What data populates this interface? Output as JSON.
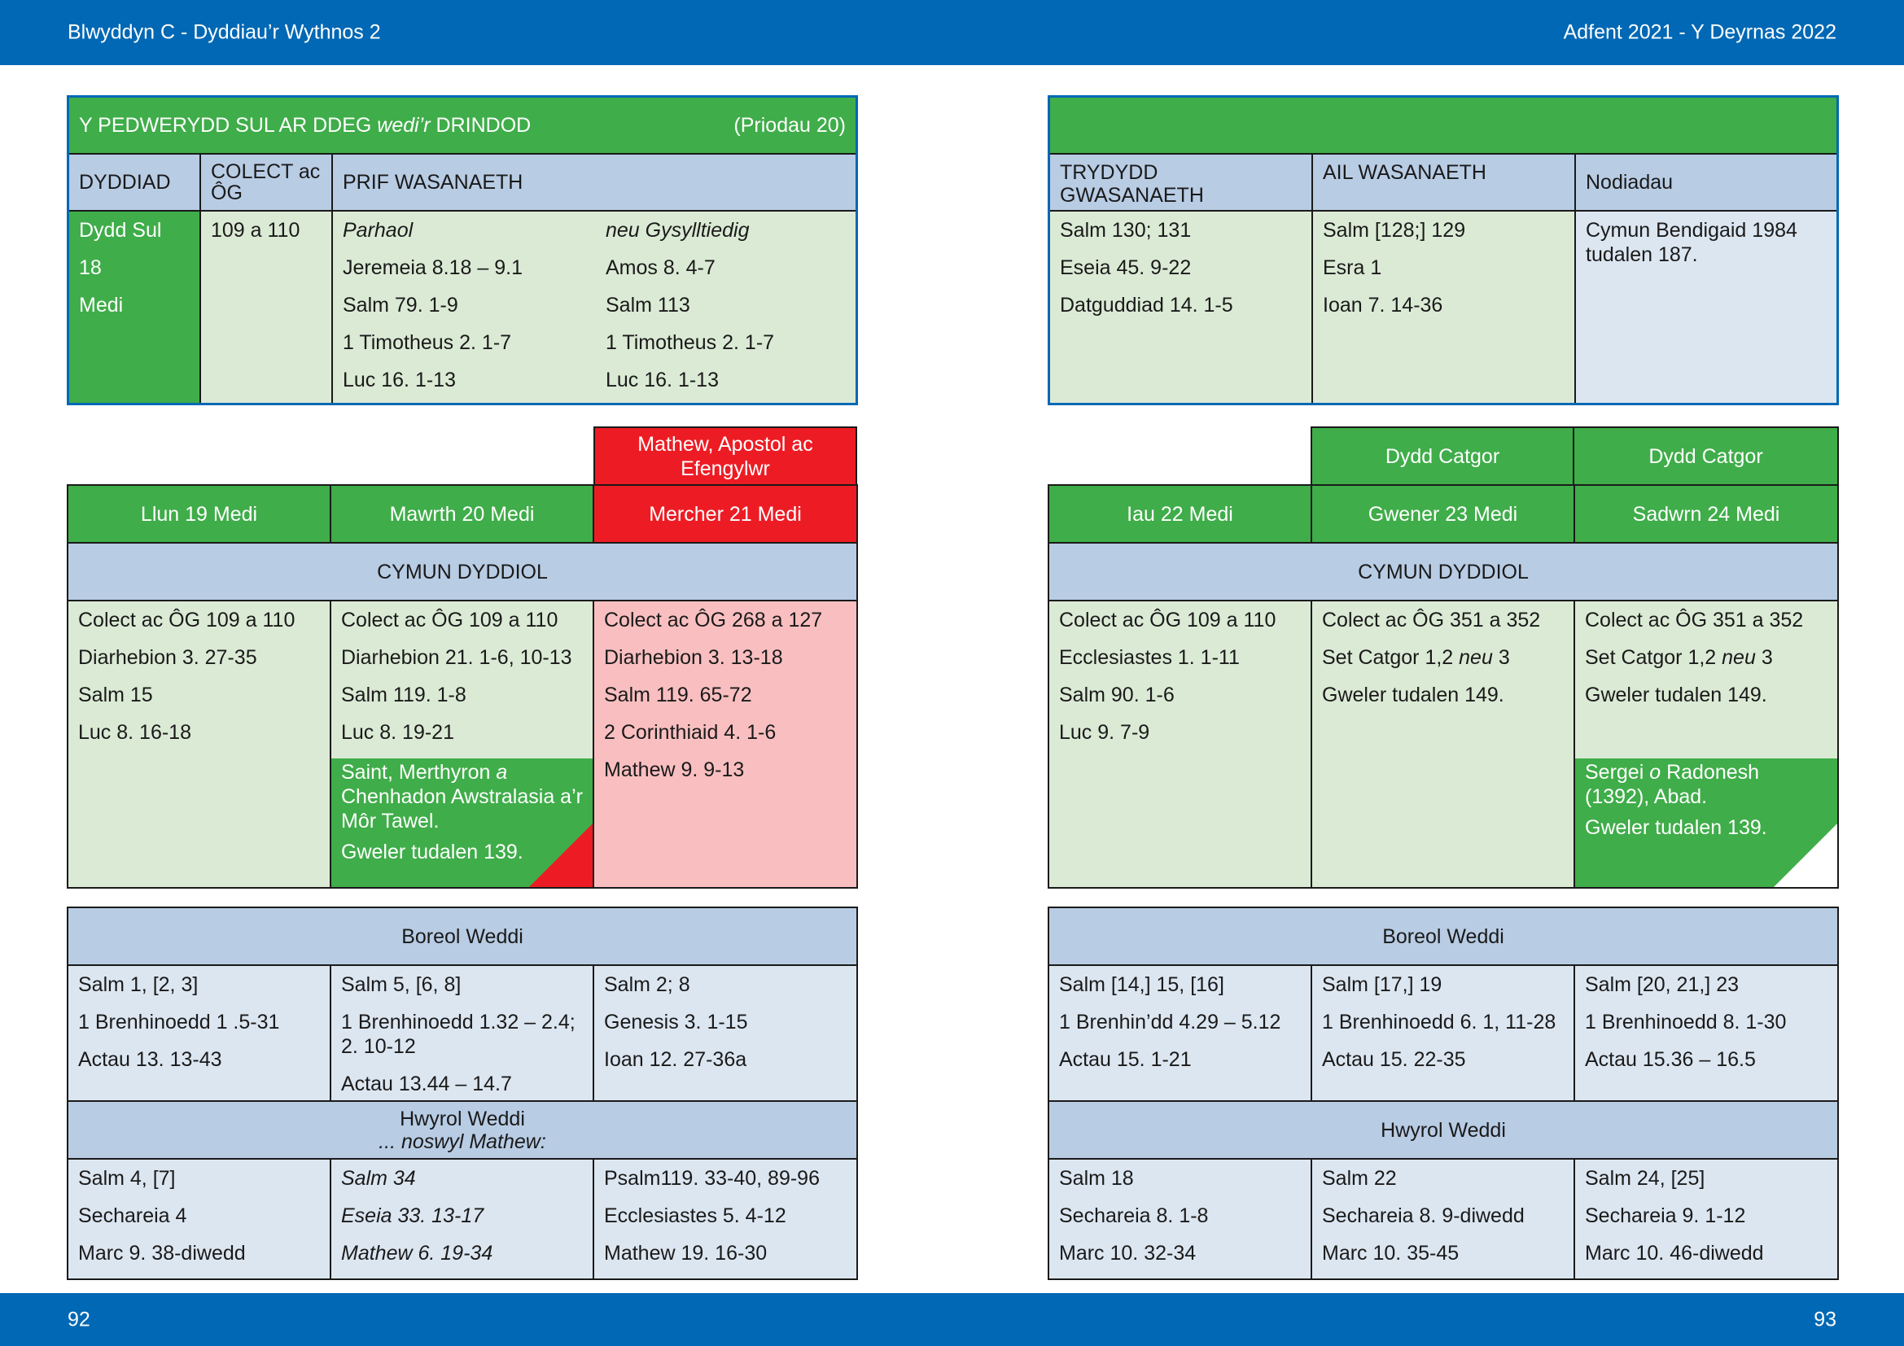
{
  "header": {
    "left": "Blwyddyn  C - Dyddiau’r Wythnos 2",
    "right": "Adfent 2021 - Y Deyrnas 2022"
  },
  "footer": {
    "left_page": "92",
    "right_page": "93"
  },
  "sunday": {
    "title_pre": "Y PEDWERYDD SUL AR DDEG ",
    "title_italic": "wedi’r",
    "title_post": " DRINDOD",
    "proper": "(Priodau 20)",
    "col_date": "DYDDIAD",
    "col_collect": "COLECT ac ÔG",
    "col_main": "PRIF WASANAETH",
    "date_lines": [
      "Dydd Sul",
      "18",
      "Medi"
    ],
    "collect": "109 a 110",
    "continuous_label": "Parhaol",
    "related_label": "neu Gysylltiedig",
    "continuous": [
      "Jeremeia 8.18 – 9.1",
      "Salm 79. 1-9",
      "1 Timotheus 2. 1-7",
      "Luc 16. 1-13"
    ],
    "related": [
      "Amos 8. 4-7",
      "Salm 113",
      "1 Timotheus 2. 1-7",
      "Luc 16. 1-13"
    ],
    "col_third": "TRYDYDD GWASANAETH",
    "col_second": "AIL WASANAETH",
    "col_notes": "Nodiadau",
    "third": [
      "Salm 130; 131",
      "Eseia 45. 9-22",
      "Datguddiad 14. 1-5"
    ],
    "second": [
      "Salm [128;] 129",
      "Esra 1",
      "Ioan 7. 14-36"
    ],
    "notes": "Cymun Bendigaid 1984 tudalen 187."
  },
  "left_week": {
    "feast_title": "Mathew, Apostol ac Efengylwr",
    "days": [
      "Llun 19 Medi",
      "Mawrth 20 Medi",
      "Mercher 21 Medi"
    ],
    "eucharist_title": "CYMUN DYDDIOL",
    "eucharist": [
      [
        "Colect ac ÔG 109 a 110",
        "Diarhebion 3. 27-35",
        "Salm 15",
        "Luc 8. 16-18"
      ],
      [
        "Colect ac ÔG 109 a 110",
        "Diarhebion 21. 1-6, 10-13",
        "Salm 119. 1-8",
        "Luc 8. 19-21"
      ],
      [
        "Colect ac ÔG 268 a 127",
        "Diarhebion 3. 13-18",
        "Salm 119. 65-72",
        "2 Corinthiaid 4. 1-6",
        "Mathew 9. 9-13"
      ]
    ],
    "commemoration": {
      "pre": "Saint, Merthyron ",
      "italic": "a",
      "post": " Chenhadon Awstralasia a’r Môr Tawel.",
      "see": "Gweler tudalen 139."
    },
    "morning_title": "Boreol Weddi",
    "morning": [
      [
        "Salm 1, [2, 3]",
        "1 Brenhinoedd 1 .5-31",
        "Actau 13. 13-43"
      ],
      [
        "Salm 5, [6, 8]",
        "1 Brenhinoedd 1.32 – 2.4; 2. 10-12",
        "Actau 13.44 – 14.7"
      ],
      [
        "Salm 2; 8",
        "Genesis 3. 1-15",
        "Ioan 12. 27-36a"
      ]
    ],
    "evening_title": "Hwyrol Weddi",
    "evening_sub": "... noswyl Mathew:",
    "evening": [
      [
        "Salm 4, [7]",
        "Sechareia 4",
        "Marc 9. 38-diwedd"
      ],
      [
        "Salm 34",
        "Eseia 33. 13-17",
        "Mathew 6. 19-34"
      ],
      [
        "Psalm119. 33-40, 89-96",
        "Ecclesiastes 5. 4-12",
        "Mathew 19. 16-30"
      ]
    ]
  },
  "right_week": {
    "feast_titles": [
      "Dydd Catgor",
      "Dydd Catgor"
    ],
    "days": [
      "Iau 22 Medi",
      "Gwener 23 Medi",
      "Sadwrn 24 Medi"
    ],
    "eucharist_title": "CYMUN DYDDIOL",
    "eucharist": [
      [
        "Colect ac ÔG 109 a 110",
        "Ecclesiastes 1. 1-11",
        "Salm 90. 1-6",
        "Luc 9. 7-9"
      ],
      [
        "Colect ac ÔG 351 a 352",
        "Set Catgor 1,2 ",
        "Gweler tudalen 149."
      ],
      [
        "Colect ac ÔG 351 a 352",
        "Set Catgor 1,2 ",
        "Gweler tudalen 149."
      ]
    ],
    "neu": "neu",
    "three": " 3",
    "commemoration": {
      "pre": "Sergei ",
      "italic": "o",
      "post": " Radonesh (1392), Abad.",
      "see": "Gweler tudalen 139."
    },
    "morning_title": "Boreol Weddi",
    "morning": [
      [
        "Salm [14,] 15, [16]",
        "1 Brenhin’dd 4.29 – 5.12",
        "Actau 15. 1-21"
      ],
      [
        "Salm [17,] 19",
        "1 Brenhinoedd 6. 1, 11-28",
        "Actau 15. 22-35"
      ],
      [
        "Salm [20, 21,] 23",
        "1 Brenhinoedd 8. 1-30",
        "Actau 15.36 – 16.5"
      ]
    ],
    "evening_title": "Hwyrol Weddi",
    "evening": [
      [
        "Salm 18",
        "Sechareia 8. 1-8",
        "Marc 10. 32-34"
      ],
      [
        "Salm 22",
        "Sechareia 8. 9-diwedd",
        "Marc 10. 35-45"
      ],
      [
        "Salm 24, [25]",
        "Sechareia 9. 1-12",
        "Marc 10. 46-diwedd"
      ]
    ]
  }
}
